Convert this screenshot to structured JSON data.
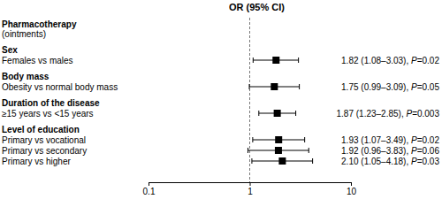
{
  "chart_data": {
    "type": "forest",
    "title": "OR (95% CI)",
    "log": "x",
    "xlim": [
      0.1,
      10
    ],
    "xticks": [
      0.1,
      1,
      10
    ],
    "reference": 1,
    "color": "#000000",
    "groups": [
      {
        "name": "Pharmacotherapy",
        "subtitle": "(ointments)",
        "categories": [],
        "values": [],
        "ci_low": [],
        "ci_high": [],
        "value_labels": []
      },
      {
        "name": "Sex",
        "categories": [
          "Females vs males"
        ],
        "values": [
          1.82
        ],
        "ci_low": [
          1.08
        ],
        "ci_high": [
          3.03
        ],
        "value_labels": [
          "1.82 (1.08–3.03), P=0.02"
        ]
      },
      {
        "name": "Body mass",
        "categories": [
          "Obesity vs normal body mass"
        ],
        "values": [
          1.75
        ],
        "ci_low": [
          0.99
        ],
        "ci_high": [
          3.09
        ],
        "value_labels": [
          "1.75 (0.99–3.09), P=0.05"
        ]
      },
      {
        "name": "Duration of the disease",
        "categories": [
          "≥15 years vs <15 years"
        ],
        "values": [
          1.87
        ],
        "ci_low": [
          1.23
        ],
        "ci_high": [
          2.85
        ],
        "value_labels": [
          "1.87 (1.23–2.85), P=0.003"
        ]
      },
      {
        "name": "Level of education",
        "categories": [
          "Primary vs vocational",
          "Primary vs secondary",
          "Primary vs higher"
        ],
        "values": [
          1.93,
          1.92,
          2.1
        ],
        "ci_low": [
          1.07,
          0.96,
          1.05
        ],
        "ci_high": [
          3.49,
          3.83,
          4.18
        ],
        "value_labels": [
          "1.93 (1.07–3.49), P=0.02",
          "1.92 (0.96–3.83), P=0.06",
          "2.10 (1.05–4.18), P=0.03"
        ]
      }
    ]
  }
}
